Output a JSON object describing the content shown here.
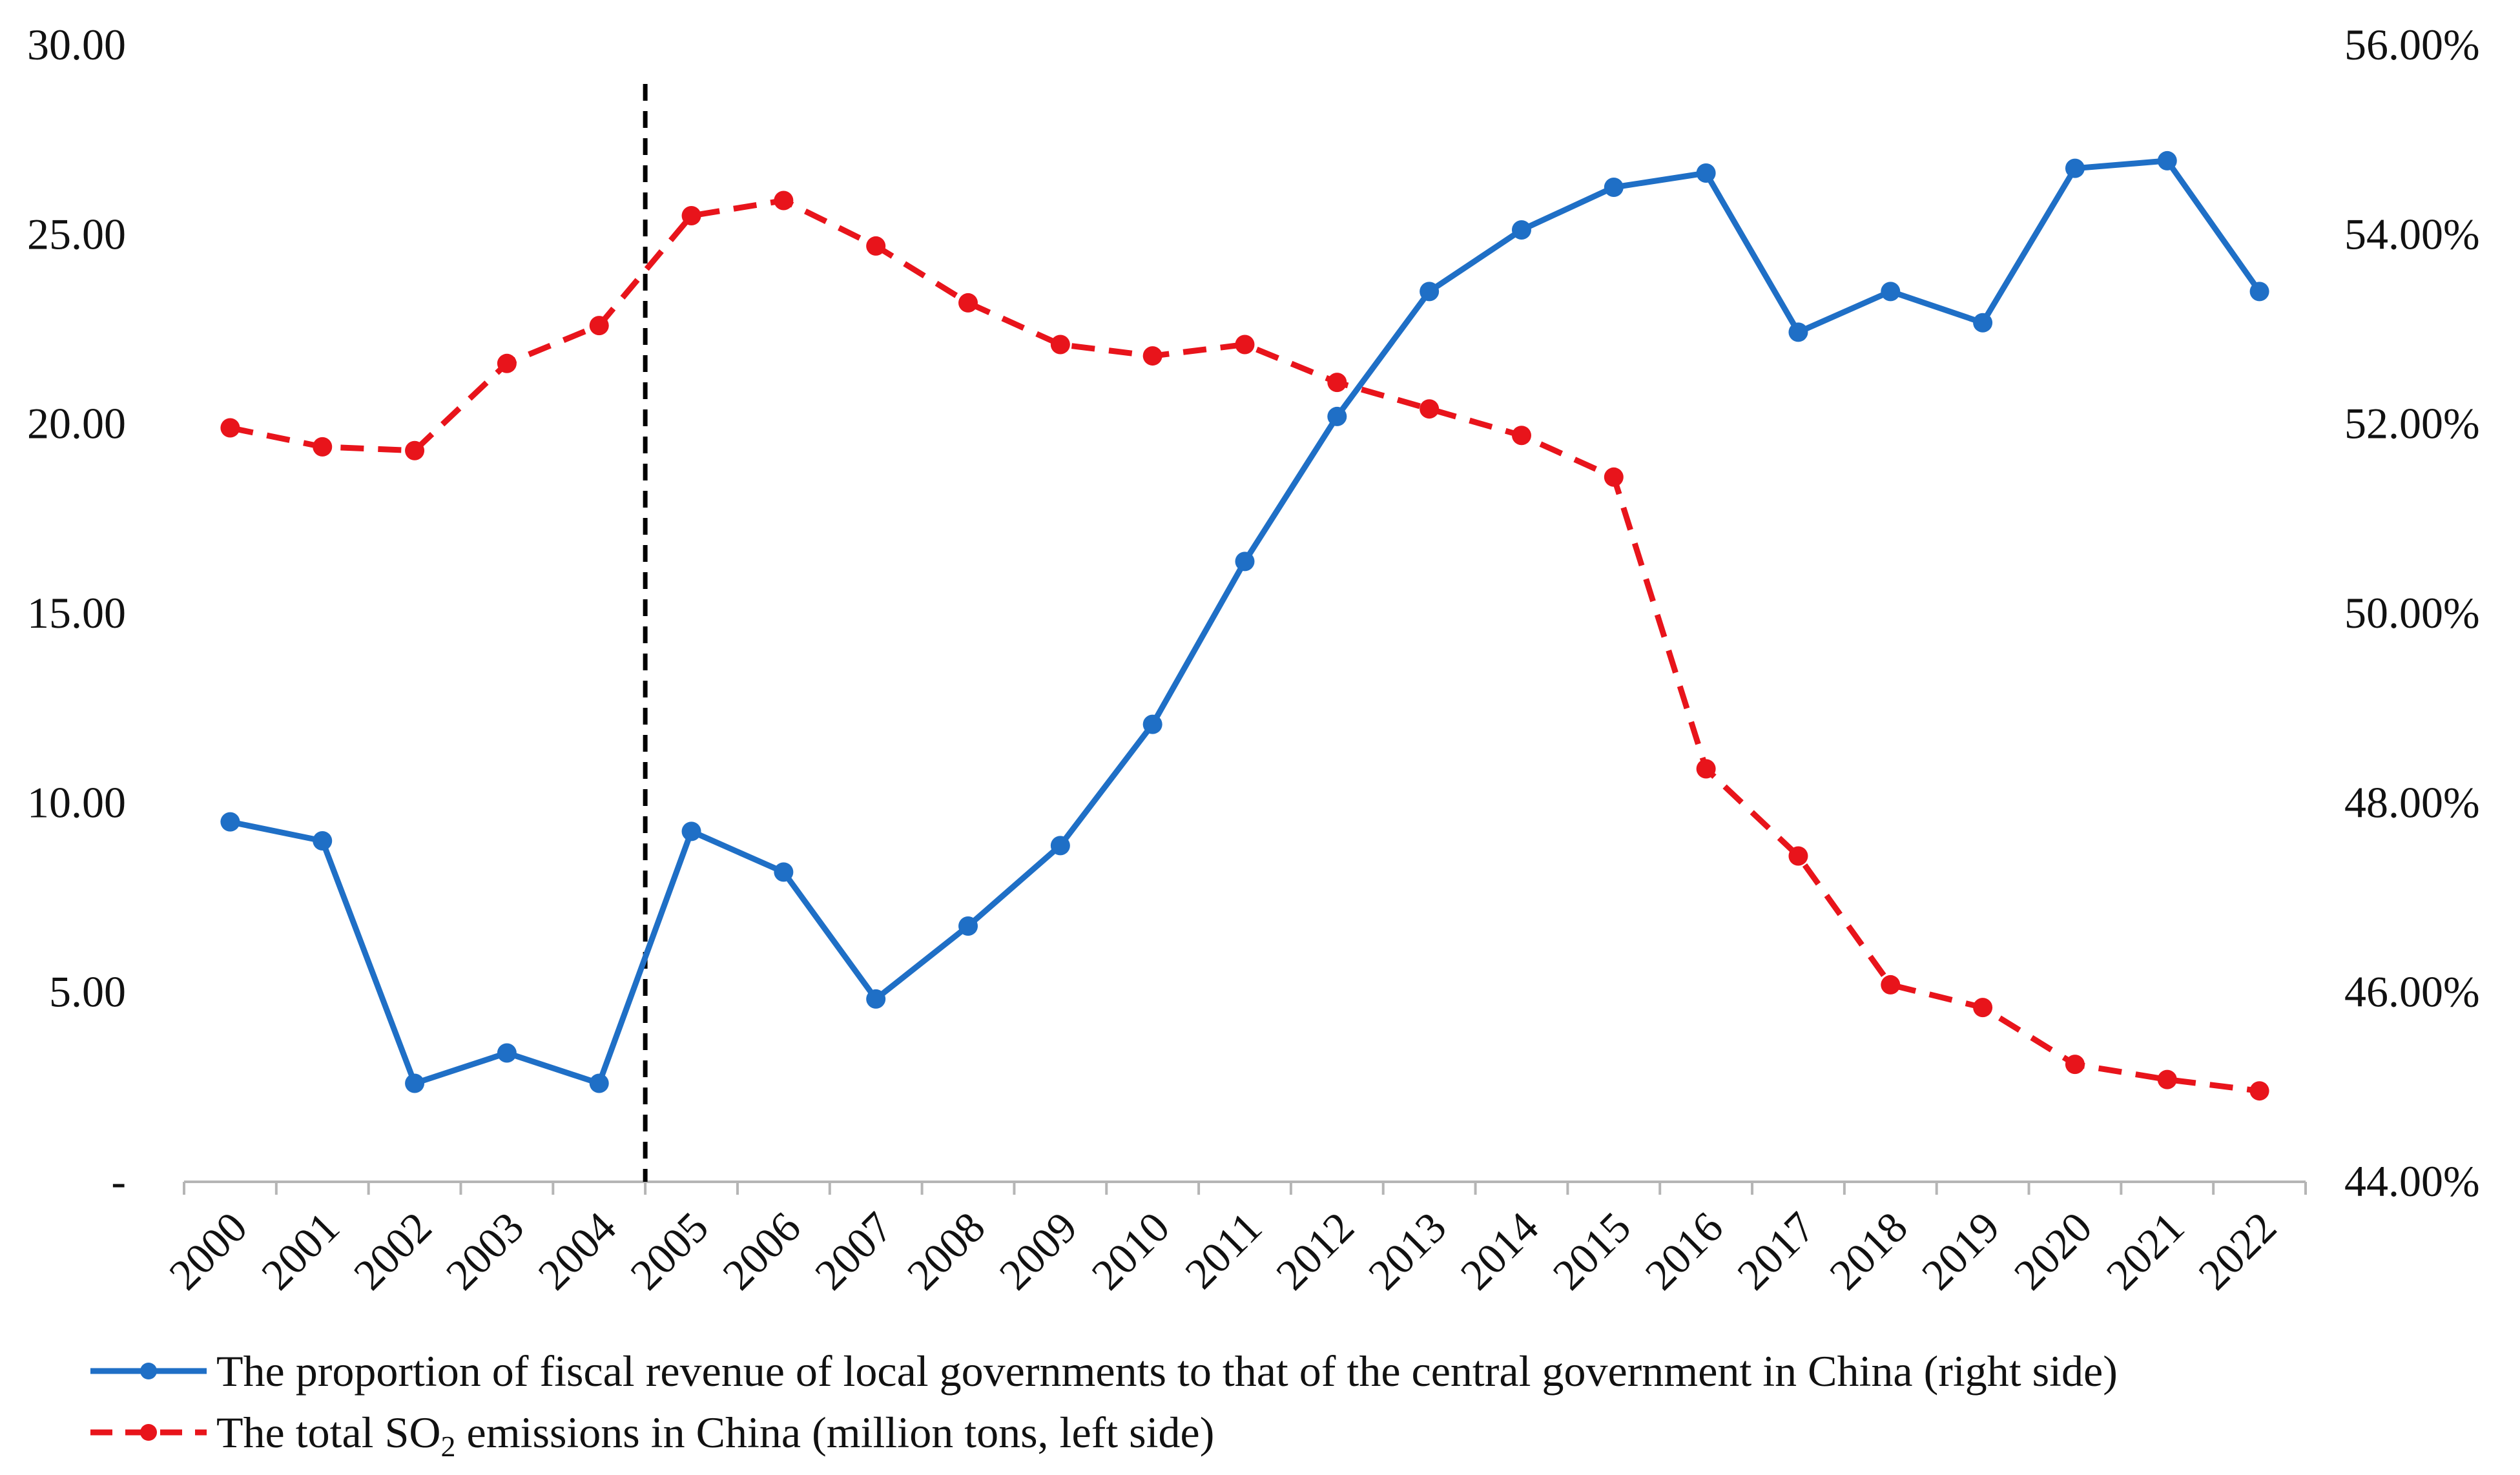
{
  "chart_data": {
    "type": "line",
    "categories": [
      "2000",
      "2001",
      "2002",
      "2003",
      "2004",
      "2005",
      "2006",
      "2007",
      "2008",
      "2009",
      "2010",
      "2011",
      "2012",
      "2013",
      "2014",
      "2015",
      "2016",
      "2017",
      "2018",
      "2019",
      "2020",
      "2021",
      "2022"
    ],
    "left_axis": {
      "ticks": [
        0,
        5,
        10,
        15,
        20,
        25,
        30
      ],
      "tick_labels": [
        "-",
        "5.00",
        "10.00",
        "15.00",
        "20.00",
        "25.00",
        "30.00"
      ],
      "ylim": [
        0,
        30
      ]
    },
    "right_axis": {
      "ticks": [
        0.44,
        0.46,
        0.48,
        0.5,
        0.52,
        0.54,
        0.56
      ],
      "tick_labels": [
        "44.00%",
        "46.00%",
        "48.00%",
        "50.00%",
        "52.00%",
        "54.00%",
        "56.00%"
      ],
      "ylim": [
        0.44,
        0.56
      ]
    },
    "series": [
      {
        "name": "The proportion of fiscal revenue of local governments to that of the central government in China (right side)",
        "axis": "right",
        "color": "#1f6fc6",
        "style": "solid",
        "values": [
          0.478,
          0.476,
          0.4504,
          0.4536,
          0.4504,
          0.477,
          0.4727,
          0.4593,
          0.467,
          0.4755,
          0.4883,
          0.5055,
          0.5208,
          0.534,
          0.5405,
          0.545,
          0.5465,
          0.5297,
          0.534,
          0.5307,
          0.547,
          0.5478,
          0.534
        ]
      },
      {
        "name_parts": [
          "The total SO",
          "2",
          " emissions in China (million tons, left side)"
        ],
        "axis": "left",
        "color": "#e8141b",
        "style": "dashed",
        "values": [
          19.9,
          19.4,
          19.3,
          21.6,
          22.6,
          25.5,
          25.9,
          24.7,
          23.2,
          22.1,
          21.8,
          22.1,
          21.1,
          20.4,
          19.7,
          18.6,
          10.9,
          8.6,
          5.2,
          4.6,
          3.1,
          2.7,
          2.4
        ]
      }
    ],
    "marker_line": {
      "between": [
        "2004",
        "2005"
      ],
      "color": "#000000",
      "style": "dashed"
    },
    "legend_position": "bottom-left"
  }
}
